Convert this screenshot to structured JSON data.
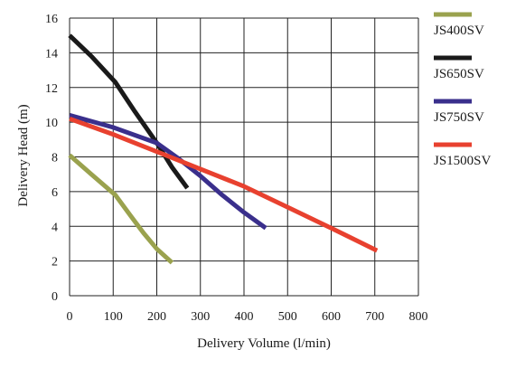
{
  "chart_data": {
    "type": "line",
    "title": "",
    "xlabel": "Delivery Volume (l/min)",
    "ylabel": "Delivery Head (m)",
    "xlim": [
      0,
      800
    ],
    "ylim": [
      0,
      16
    ],
    "x_ticks": [
      0,
      100,
      200,
      300,
      400,
      500,
      600,
      700,
      800
    ],
    "y_ticks": [
      0,
      2,
      4,
      6,
      8,
      10,
      12,
      14,
      16
    ],
    "grid": true,
    "legend_position": "right",
    "series": [
      {
        "name": "JS400SV",
        "color": "#9aa24e",
        "points": [
          [
            0,
            8.1
          ],
          [
            50,
            7.0
          ],
          [
            105,
            5.8
          ],
          [
            140,
            4.6
          ],
          [
            170,
            3.6
          ],
          [
            200,
            2.7
          ],
          [
            235,
            1.9
          ]
        ]
      },
      {
        "name": "JS650SV",
        "color": "#1a1a1a",
        "points": [
          [
            0,
            15.0
          ],
          [
            50,
            13.8
          ],
          [
            105,
            12.3
          ],
          [
            150,
            10.6
          ],
          [
            200,
            8.8
          ],
          [
            235,
            7.4
          ],
          [
            270,
            6.2
          ]
        ]
      },
      {
        "name": "JS750SV",
        "color": "#3a2f8c",
        "points": [
          [
            0,
            10.4
          ],
          [
            100,
            9.7
          ],
          [
            200,
            8.8
          ],
          [
            250,
            7.9
          ],
          [
            300,
            6.9
          ],
          [
            350,
            5.8
          ],
          [
            400,
            4.8
          ],
          [
            450,
            3.9
          ]
        ]
      },
      {
        "name": "JS1500SV",
        "color": "#e8412f",
        "points": [
          [
            0,
            10.2
          ],
          [
            100,
            9.3
          ],
          [
            200,
            8.3
          ],
          [
            300,
            7.3
          ],
          [
            400,
            6.3
          ],
          [
            500,
            5.1
          ],
          [
            600,
            3.9
          ],
          [
            705,
            2.6
          ]
        ]
      }
    ]
  }
}
